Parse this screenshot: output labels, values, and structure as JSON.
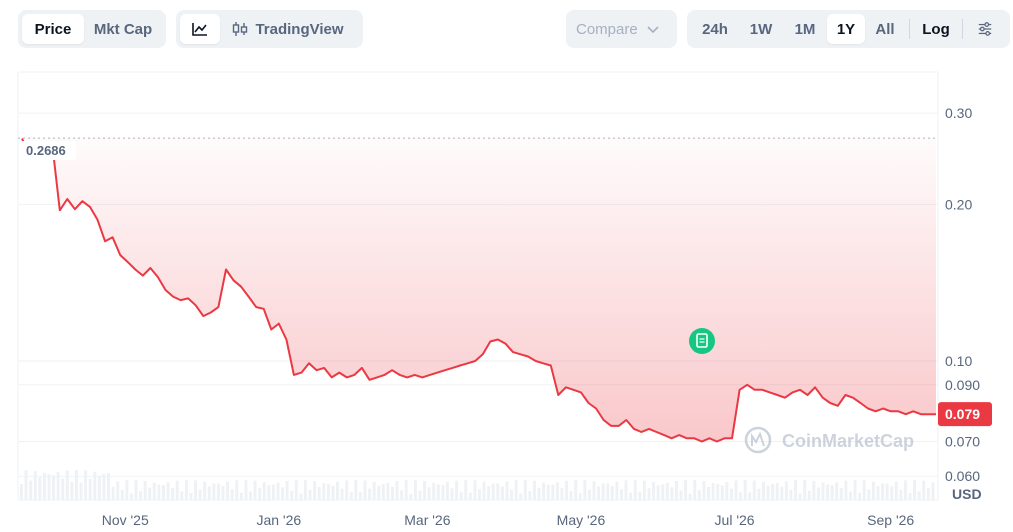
{
  "toolbar": {
    "price_label": "Price",
    "mktcap_label": "Mkt Cap",
    "tradingview_label": "TradingView",
    "compare_label": "Compare",
    "ranges": [
      "24h",
      "1W",
      "1M",
      "1Y",
      "All"
    ],
    "active_range": "1Y",
    "log_label": "Log"
  },
  "chart_data": {
    "type": "line",
    "title": "",
    "xlabel": "",
    "ylabel": "",
    "unit_label": "USD",
    "y_scale": "log",
    "ylim": [
      0.054,
      0.36
    ],
    "y_ticks": [
      0.3,
      0.2,
      0.1,
      0.09,
      0.07,
      0.06
    ],
    "y_tick_labels": [
      "0.30",
      "0.20",
      "0.10",
      "0.090",
      "0.070",
      "0.060"
    ],
    "x_tick_labels": [
      "Nov '25",
      "Jan '26",
      "Mar '26",
      "May '26",
      "Jul '26",
      "Sep '26"
    ],
    "start_price_label": "0.2686",
    "start_price": 0.2686,
    "current_price_label": "0.079",
    "current_price": 0.079,
    "watermark": "CoinMarketCap",
    "series": [
      {
        "color": "#ea3943",
        "x": [
          "2025-09-21",
          "2025-09-24",
          "2025-09-27",
          "2025-09-30",
          "2025-10-03",
          "2025-10-06",
          "2025-10-09",
          "2025-10-12",
          "2025-10-15",
          "2025-10-18",
          "2025-10-21",
          "2025-10-24",
          "2025-10-27",
          "2025-10-30",
          "2025-11-02",
          "2025-11-05",
          "2025-11-08",
          "2025-11-11",
          "2025-11-14",
          "2025-11-17",
          "2025-11-20",
          "2025-11-23",
          "2025-11-26",
          "2025-11-29",
          "2025-12-02",
          "2025-12-05",
          "2025-12-08",
          "2025-12-11",
          "2025-12-14",
          "2025-12-17",
          "2025-12-20",
          "2025-12-23",
          "2025-12-26",
          "2025-12-29",
          "2026-01-01",
          "2026-01-04",
          "2026-01-07",
          "2026-01-10",
          "2026-01-13",
          "2026-01-16",
          "2026-01-19",
          "2026-01-22",
          "2026-01-25",
          "2026-01-28",
          "2026-01-31",
          "2026-02-03",
          "2026-02-06",
          "2026-02-09",
          "2026-02-12",
          "2026-02-15",
          "2026-02-18",
          "2026-02-21",
          "2026-02-24",
          "2026-02-27",
          "2026-03-02",
          "2026-03-05",
          "2026-03-08",
          "2026-03-11",
          "2026-03-14",
          "2026-03-17",
          "2026-03-20",
          "2026-03-23",
          "2026-03-26",
          "2026-03-29",
          "2026-04-01",
          "2026-04-04",
          "2026-04-07",
          "2026-04-10",
          "2026-04-13",
          "2026-04-16",
          "2026-04-19",
          "2026-04-22",
          "2026-04-25",
          "2026-04-28",
          "2026-05-01",
          "2026-05-04",
          "2026-05-07",
          "2026-05-10",
          "2026-05-13",
          "2026-05-16",
          "2026-05-19",
          "2026-05-22",
          "2026-05-25",
          "2026-05-28",
          "2026-05-31",
          "2026-06-03",
          "2026-06-06",
          "2026-06-09",
          "2026-06-12",
          "2026-06-15",
          "2026-06-18",
          "2026-06-21",
          "2026-06-24",
          "2026-06-27",
          "2026-06-30",
          "2026-07-03",
          "2026-07-06",
          "2026-07-09",
          "2026-07-12",
          "2026-07-15",
          "2026-07-18",
          "2026-07-21",
          "2026-07-24",
          "2026-07-27",
          "2026-07-30",
          "2026-08-02",
          "2026-08-05",
          "2026-08-08",
          "2026-08-11",
          "2026-08-14",
          "2026-08-17",
          "2026-08-20",
          "2026-08-23",
          "2026-08-26",
          "2026-08-29",
          "2026-09-01",
          "2026-09-04",
          "2026-09-07",
          "2026-09-10",
          "2026-09-13",
          "2026-09-16",
          "2026-09-19"
        ],
        "values": [
          0.268,
          0.25,
          0.245,
          0.258,
          0.262,
          0.195,
          0.205,
          0.196,
          0.203,
          0.198,
          0.187,
          0.17,
          0.173,
          0.16,
          0.155,
          0.15,
          0.146,
          0.151,
          0.145,
          0.137,
          0.133,
          0.131,
          0.132,
          0.128,
          0.122,
          0.124,
          0.127,
          0.15,
          0.143,
          0.139,
          0.133,
          0.127,
          0.126,
          0.115,
          0.118,
          0.11,
          0.094,
          0.095,
          0.099,
          0.096,
          0.097,
          0.093,
          0.095,
          0.093,
          0.094,
          0.097,
          0.092,
          0.093,
          0.094,
          0.096,
          0.094,
          0.093,
          0.094,
          0.093,
          0.094,
          0.095,
          0.096,
          0.097,
          0.098,
          0.099,
          0.1,
          0.103,
          0.109,
          0.11,
          0.108,
          0.104,
          0.103,
          0.102,
          0.1,
          0.099,
          0.098,
          0.086,
          0.089,
          0.088,
          0.087,
          0.083,
          0.081,
          0.077,
          0.075,
          0.075,
          0.077,
          0.074,
          0.073,
          0.074,
          0.073,
          0.072,
          0.071,
          0.072,
          0.071,
          0.071,
          0.07,
          0.071,
          0.07,
          0.071,
          0.071,
          0.088,
          0.09,
          0.088,
          0.088,
          0.087,
          0.086,
          0.085,
          0.087,
          0.088,
          0.086,
          0.089,
          0.085,
          0.083,
          0.082,
          0.086,
          0.085,
          0.083,
          0.081,
          0.08,
          0.081,
          0.08,
          0.08,
          0.079,
          0.08,
          0.079,
          0.079,
          0.079
        ]
      }
    ]
  }
}
